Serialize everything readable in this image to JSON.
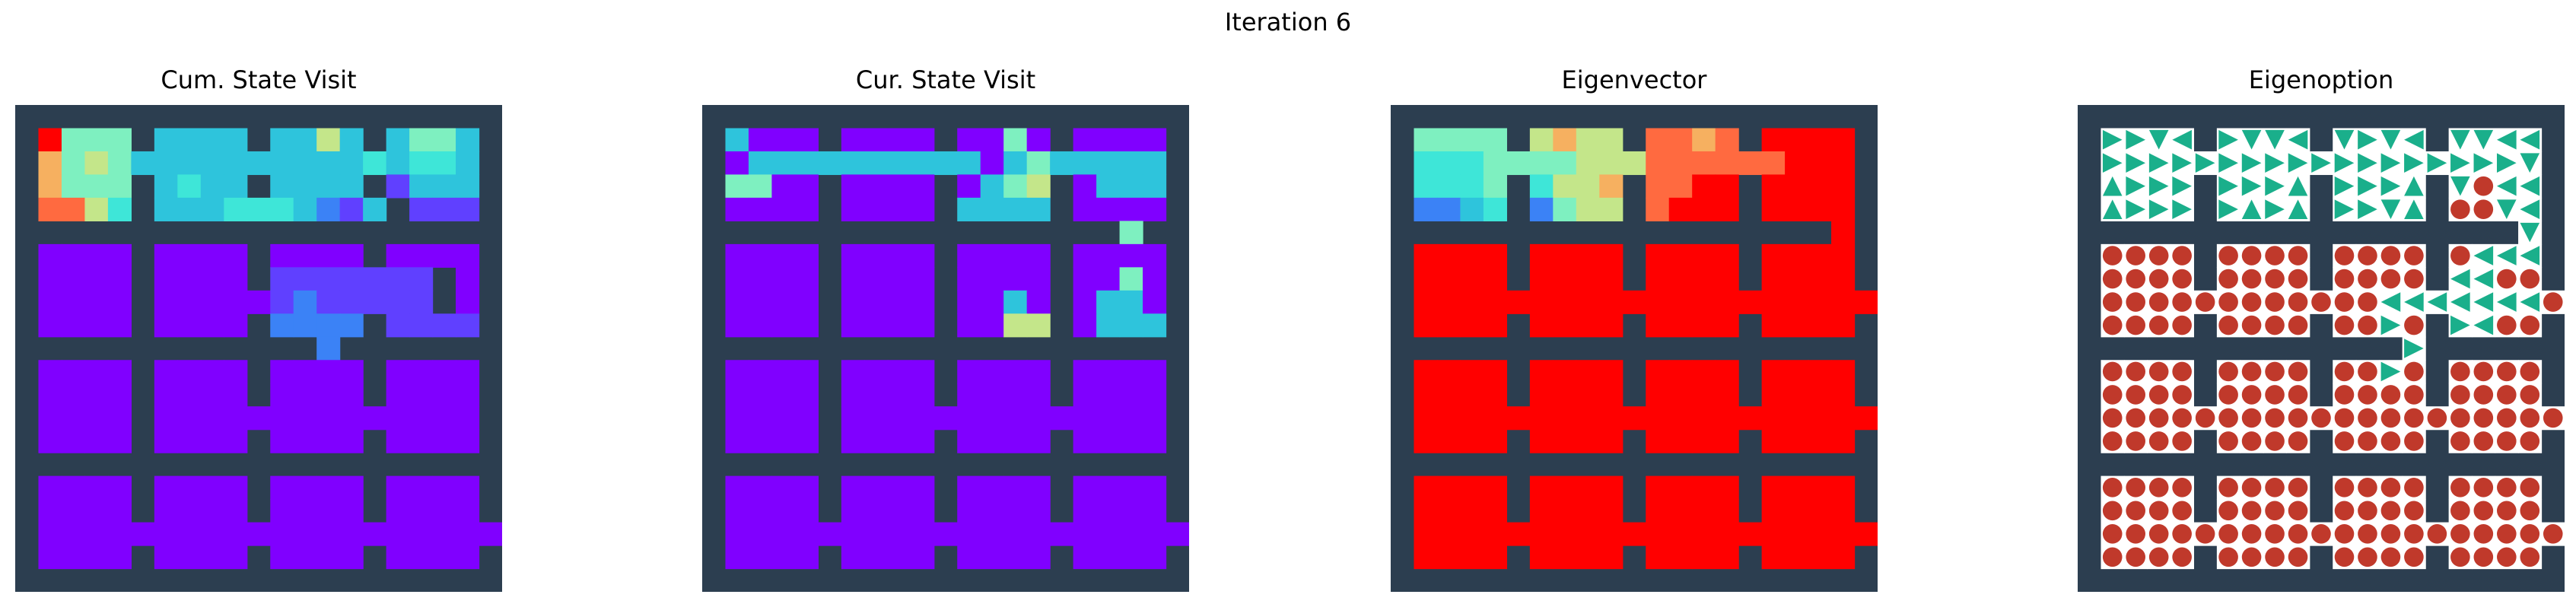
{
  "title": "Iteration 6",
  "colors": {
    "wall": "#2c3e50",
    "room_bg": "#ffffff",
    "arrow": "#1aaf8b",
    "dot": "#c0392b"
  },
  "chart_data": [
    {
      "type": "heatmap",
      "title": "Cum. State Visit",
      "colormap": "rainbow",
      "grid": [
        "XXXXXXXXXXXXXXXXXXXXX",
        "X9555X3333X3363X3553X",
        "X7565333333333343443X",
        "X7555X3433X3333X1333X",
        "X8864X3334443213X111X",
        "XXXXXXXXXXXXXXXXXXXXX",
        "X0000X0000X0000X0000X",
        "X0000X0000X1111111X0X",
        "X0000X000001211111X0X",
        "X0000X0000X2222X1111X",
        "XXXXXXXXXXXXX2XXXXXXX",
        "X0000X0000X0000X0000X",
        "X0000X0000X0000X0000X",
        "X0000X00000000000000X",
        "X0000X0000X0000X0000X",
        "XXXXXXXXXXXXXXXXXXXXX",
        "X0000X0000X0000X0000X",
        "X0000X0000X0000X0000X",
        "X00000000000000000000X",
        "X0000X0000X0000X0000X",
        "XXXXXXXXXXXXXXXXXXXXX"
      ]
    },
    {
      "type": "heatmap",
      "title": "Cur. State Visit",
      "colormap": "rainbow",
      "grid": [
        "XXXXXXXXXXXXXXXXXXXXX",
        "X3000X0000X0050X0000X",
        "X0333333333303533333X",
        "X5500X0000X0356X0333X",
        "X0000X0000X3333X0000X",
        "XXXXXXXXXXXXXXXXXX5XXX",
        "X0000X0000X0000X0000X",
        "X0000X0000X0000X0050X",
        "X0000X0000X0030X0330X",
        "X0000X0000X0066X0333X",
        "XXXXXXXXXXXXXXXXXXXXX",
        "X0000X0000X0000X0000X",
        "X0000X0000X0000X0000X",
        "X0000X00000000000000X",
        "X0000X0000X0000X0000X",
        "XXXXXXXXXXXXXXXXXXXXX",
        "X0000X0000X0000X0000X",
        "X0000X0000X0000X0000X",
        "X00000000000000000000X",
        "X0000X0000X0000X0000X",
        "XXXXXXXXXXXXXXXXXXXXX"
      ]
    },
    {
      "type": "heatmap",
      "title": "Eigenvector",
      "colormap": "rainbow",
      "grid": [
        "XXXXXXXXXXXXXXXXXXXXX",
        "X5555X6766X8878X9999X",
        "X4445555666888888999X",
        "X4445X4667X8899X9999X",
        "X2234X2566X8999X9999X",
        "XXXXXXXXXXXXXXXXXXX9XX",
        "X9999X9999X9999X9999X",
        "X9999X9999X9999X9999X",
        "X99999999999999999999X",
        "X9999X9999X9999X9999X",
        "XXXXXXXXXXXXXXXXXXXXX",
        "X9999X9999X9999X9999X",
        "X9999X9999X9999X9999X",
        "X99999999999999999999X",
        "X9999X9999X9999X9999X",
        "XXXXXXXXXXXXXXXXXXXXX",
        "X9999X9999X9999X9999X",
        "X9999X9999X9999X9999X",
        "X99999999999999999999X",
        "X9999X9999X9999X9999X",
        "XXXXXXXXXXXXXXXXXXXXX"
      ]
    },
    {
      "type": "table",
      "title": "Eigenoption",
      "policy": [
        "XXXXXXXXXXXXXXXXXXXXX",
        "XRRDLXRDDLXDRDLXDDLLX",
        "XRRRRRRRRRRRRRRRRRRDX",
        "XURRRXRRRUXRRRUXDoLLX",
        "XURRRXRURUXRRDUXooDLX",
        "XXXXXXXXXXXXXXXXXXXDXX",
        "XooooXooooXooooXoLLLX",
        "XooooXooooXooooXLLooX",
        "XooooooooooooLLLLLLLoX",
        "XooooXooooXooRoXRLooX",
        "XXXXXXXXXXXXXXRXXXXXX",
        "XooooXooooXooRoXooooX",
        "XooooXooooXooooXooooX",
        "XooooooooooooooooooooX",
        "XooooXooooXooooXooooX",
        "XXXXXXXXXXXXXXXXXXXXX",
        "XooooXooooXooooXooooX",
        "XooooXooooXooooXooooX",
        "XoooooooooooooooooooooX",
        "XooooXooooXooooXooooX",
        "XXXXXXXXXXXXXXXXXXXXX"
      ]
    }
  ]
}
